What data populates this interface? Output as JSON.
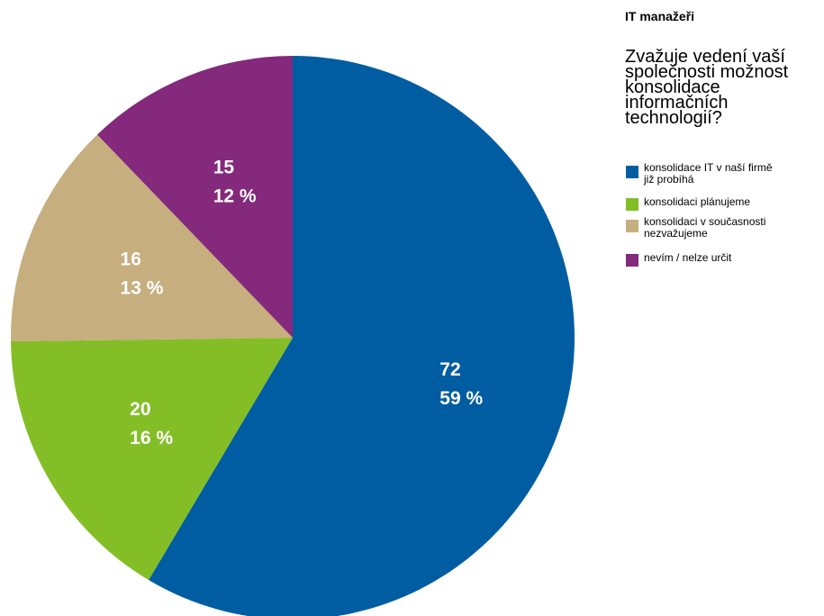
{
  "panel_header": "IT manažeři",
  "chart_data": {
    "type": "pie",
    "title": "Zvažuje vedení vaší\nspolečnosti možnost\nkonsolidace\ninformačních\ntechnologií?",
    "legend_position": "right",
    "slices": [
      {
        "name": "konsolidace IT v naší firmě\njiž probíhá",
        "value": 72,
        "value_label": "72",
        "percent_label": "59 %",
        "color": "#005DA2"
      },
      {
        "name": "konsolidaci plánujeme",
        "value": 20,
        "value_label": "20",
        "percent_label": "16 %",
        "color": "#84BE27"
      },
      {
        "name": "konsolidaci v současnosti\nnezvažujeme",
        "value": 16,
        "value_label": "16",
        "percent_label": "13 %",
        "color": "#C6AE7E"
      },
      {
        "name": " nevím / nelze určit",
        "value": 15,
        "value_label": "15",
        "percent_label": "12 %",
        "color": "#84297C"
      }
    ]
  }
}
